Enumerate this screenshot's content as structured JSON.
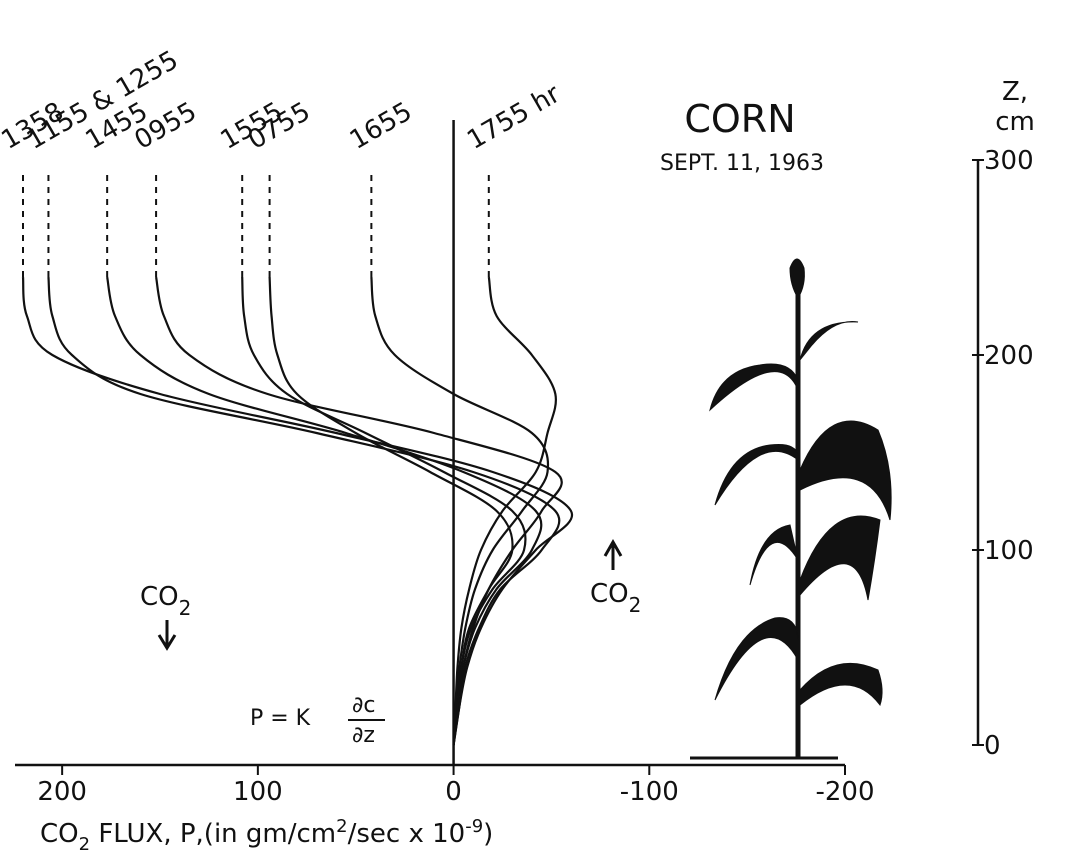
{
  "chart_data": {
    "type": "line",
    "title": "CORN",
    "subtitle": "SEPT. 11, 1963",
    "ylabel": [
      "Z,",
      "cm"
    ],
    "xlabel_parts": [
      "CO",
      "2",
      " FLUX,  P,(in gm/cm",
      "2",
      "/sec  x 10",
      "-9",
      ")"
    ],
    "annotations": {
      "co2_down": [
        "CO",
        "2"
      ],
      "co2_up": [
        "CO",
        "2"
      ],
      "formula": [
        "P = K",
        "∂c",
        "∂z"
      ]
    },
    "y": [
      0,
      20,
      40,
      60,
      80,
      100,
      120,
      140,
      160,
      180,
      200,
      220,
      240
    ],
    "series": [
      {
        "name": "1358",
        "color": "#111111",
        "values": [
          0,
          -3,
          -7,
          -14,
          -25,
          -42,
          -60,
          -20,
          60,
          150,
          205,
          218,
          220
        ]
      },
      {
        "name": "1155 & 1255",
        "color": "#111111",
        "values": [
          0,
          -3,
          -6,
          -13,
          -24,
          -45,
          -52,
          -10,
          70,
          160,
          195,
          205,
          207
        ]
      },
      {
        "name": "1455",
        "color": "#111111",
        "values": [
          0,
          -2,
          -5,
          -11,
          -22,
          -40,
          -42,
          -5,
          55,
          125,
          160,
          173,
          177
        ]
      },
      {
        "name": "0955",
        "color": "#111111",
        "values": [
          0,
          -2,
          -5,
          -10,
          -18,
          -30,
          -45,
          -52,
          10,
          95,
          135,
          148,
          152
        ]
      },
      {
        "name": "1555",
        "color": "#111111",
        "values": [
          0,
          -2,
          -4,
          -9,
          -20,
          -36,
          -30,
          5,
          45,
          85,
          102,
          107,
          108
        ]
      },
      {
        "name": "0755",
        "color": "#111111",
        "values": [
          0,
          -2,
          -4,
          -8,
          -18,
          -30,
          -22,
          12,
          50,
          80,
          90,
          93,
          94
        ]
      },
      {
        "name": "1655",
        "color": "#111111",
        "values": [
          0,
          -1,
          -3,
          -6,
          -11,
          -20,
          -35,
          -48,
          -40,
          0,
          30,
          40,
          42
        ]
      },
      {
        "name": "1755 hr",
        "color": "#111111",
        "values": [
          0,
          -1,
          -2,
          -4,
          -8,
          -14,
          -25,
          -42,
          -48,
          -52,
          -40,
          -22,
          -18
        ]
      }
    ],
    "xlim": [
      220,
      -200
    ],
    "xticks": [
      200,
      100,
      0,
      -100,
      -200
    ],
    "ylim": [
      0,
      300
    ],
    "yticks": [
      0,
      100,
      200,
      300
    ]
  }
}
